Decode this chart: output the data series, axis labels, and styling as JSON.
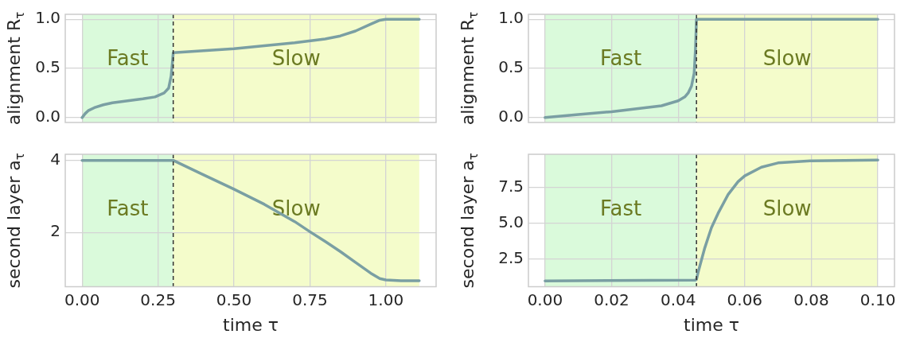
{
  "chart_data": [
    {
      "type": "line",
      "ylabel": "alignment R$_{τ}$",
      "xlim": [
        -0.0555,
        1.1655
      ],
      "ylim": [
        -0.05,
        1.05
      ],
      "xticks": [
        0,
        0.25,
        0.5,
        0.75,
        1
      ],
      "yticks": [
        {
          "value": 0,
          "label": "0.0"
        },
        {
          "value": 0.5,
          "label": "0.5"
        },
        {
          "value": 1,
          "label": "1.0"
        }
      ],
      "tick_labels": "y",
      "grid": true,
      "legend": false,
      "marker": "none",
      "line_style": "solid",
      "series": [
        {
          "color": "#7a9fa3",
          "x": [
            0,
            0.01,
            0.02,
            0.04,
            0.07,
            0.1,
            0.15,
            0.2,
            0.24,
            0.27,
            0.285,
            0.293,
            0.297,
            0.3,
            0.4,
            0.5,
            0.6,
            0.7,
            0.8,
            0.85,
            0.9,
            0.95,
            0.98,
            1.0,
            1.11
          ],
          "values": [
            0,
            0.04,
            0.07,
            0.1,
            0.13,
            0.15,
            0.17,
            0.19,
            0.21,
            0.25,
            0.3,
            0.42,
            0.55,
            0.66,
            0.68,
            0.7,
            0.73,
            0.76,
            0.8,
            0.83,
            0.88,
            0.95,
            0.99,
            1.0,
            1.0
          ]
        }
      ],
      "bands": [
        {
          "axis": "x",
          "from": 0,
          "to": 0.3,
          "color": "#dafadb",
          "label": "Fast"
        },
        {
          "axis": "x",
          "from": 0.3,
          "to": 1.11,
          "color": "#f4fccb",
          "label": "Slow"
        }
      ],
      "ref_lines": [
        {
          "axis": "x",
          "value": 0.3,
          "color": "#333333",
          "line_style": "dashed"
        }
      ]
    },
    {
      "type": "line",
      "ylabel": "alignment R$_{τ}$",
      "xlim": [
        -0.005,
        0.105
      ],
      "ylim": [
        -0.05,
        1.05
      ],
      "xticks": [
        0,
        0.02,
        0.04,
        0.06,
        0.08,
        0.1
      ],
      "yticks": [
        {
          "value": 0,
          "label": "0.0"
        },
        {
          "value": 0.5,
          "label": "0.5"
        },
        {
          "value": 1,
          "label": "1.0"
        }
      ],
      "tick_labels": "y",
      "grid": true,
      "legend": false,
      "marker": "none",
      "line_style": "solid",
      "series": [
        {
          "color": "#7a9fa3",
          "x": [
            0,
            0.01,
            0.02,
            0.03,
            0.035,
            0.04,
            0.042,
            0.043,
            0.044,
            0.0448,
            0.0452,
            0.0455,
            0.1
          ],
          "values": [
            0,
            0.03,
            0.06,
            0.1,
            0.12,
            0.17,
            0.21,
            0.25,
            0.32,
            0.45,
            0.7,
            1.0,
            1.0
          ]
        }
      ],
      "bands": [
        {
          "axis": "x",
          "from": 0,
          "to": 0.0455,
          "color": "#dafadb",
          "label": "Fast"
        },
        {
          "axis": "x",
          "from": 0.0455,
          "to": 0.1,
          "color": "#f4fccb",
          "label": "Slow"
        }
      ],
      "ref_lines": [
        {
          "axis": "x",
          "value": 0.0455,
          "color": "#333333",
          "line_style": "dashed"
        }
      ]
    },
    {
      "type": "line",
      "xlabel": "time τ",
      "ylabel": "second layer a$_{τ}$",
      "xlim": [
        -0.0555,
        1.1655
      ],
      "ylim": [
        0.49,
        4.17
      ],
      "xticks": [
        {
          "value": 0,
          "label": "0.00"
        },
        {
          "value": 0.25,
          "label": "0.25"
        },
        {
          "value": 0.5,
          "label": "0.50"
        },
        {
          "value": 0.75,
          "label": "0.75"
        },
        {
          "value": 1,
          "label": "1.00"
        }
      ],
      "yticks": [
        2,
        4
      ],
      "grid": true,
      "legend": false,
      "marker": "none",
      "line_style": "solid",
      "series": [
        {
          "color": "#7a9fa3",
          "x": [
            0,
            0.3,
            0.4,
            0.5,
            0.6,
            0.7,
            0.75,
            0.8,
            0.85,
            0.9,
            0.95,
            0.98,
            1.0,
            1.05,
            1.11
          ],
          "values": [
            4,
            4,
            3.6,
            3.2,
            2.78,
            2.3,
            2.02,
            1.75,
            1.47,
            1.17,
            0.87,
            0.72,
            0.68,
            0.66,
            0.66
          ]
        }
      ],
      "bands": [
        {
          "axis": "x",
          "from": 0,
          "to": 0.3,
          "color": "#dafadb",
          "label": "Fast"
        },
        {
          "axis": "x",
          "from": 0.3,
          "to": 1.11,
          "color": "#f4fccb",
          "label": "Slow"
        }
      ],
      "ref_lines": [
        {
          "axis": "x",
          "value": 0.3,
          "color": "#333333",
          "line_style": "dashed"
        }
      ]
    },
    {
      "type": "line",
      "xlabel": "time τ",
      "ylabel": "second layer a$_{τ}$",
      "xlim": [
        -0.005,
        0.105
      ],
      "ylim": [
        0.59,
        9.8
      ],
      "xticks": [
        {
          "value": 0,
          "label": "0.00"
        },
        {
          "value": 0.02,
          "label": "0.02"
        },
        {
          "value": 0.04,
          "label": "0.04"
        },
        {
          "value": 0.06,
          "label": "0.06"
        },
        {
          "value": 0.08,
          "label": "0.08"
        },
        {
          "value": 0.1,
          "label": "0.10"
        }
      ],
      "yticks": [
        2.5,
        {
          "value": 5,
          "label": "5.0"
        },
        7.5
      ],
      "grid": true,
      "legend": false,
      "marker": "none",
      "line_style": "solid",
      "series": [
        {
          "color": "#7a9fa3",
          "x": [
            0,
            0.045,
            0.0455,
            0.046,
            0.048,
            0.05,
            0.052,
            0.055,
            0.058,
            0.06,
            0.065,
            0.07,
            0.08,
            0.1
          ],
          "values": [
            1.0,
            1.05,
            1.1,
            1.6,
            3.3,
            4.7,
            5.7,
            7.0,
            7.9,
            8.3,
            8.9,
            9.2,
            9.35,
            9.4
          ]
        }
      ],
      "bands": [
        {
          "axis": "x",
          "from": 0,
          "to": 0.0455,
          "color": "#dafadb",
          "label": "Fast"
        },
        {
          "axis": "x",
          "from": 0.0455,
          "to": 0.1,
          "color": "#f4fccb",
          "label": "Slow"
        }
      ],
      "ref_lines": [
        {
          "axis": "x",
          "value": 0.0455,
          "color": "#333333",
          "line_style": "dashed"
        }
      ]
    }
  ]
}
